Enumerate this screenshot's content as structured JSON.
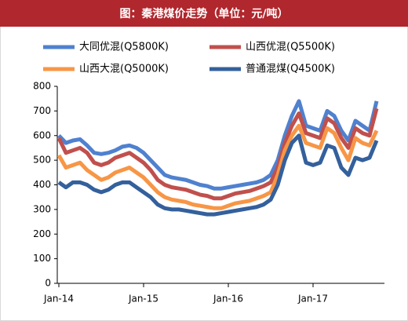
{
  "chart_data": {
    "type": "line",
    "title": "图：秦港煤价走势（单位：元/吨）",
    "categories": [
      "Jan-14",
      null,
      null,
      null,
      null,
      null,
      null,
      null,
      null,
      null,
      null,
      null,
      "Jan-15",
      null,
      null,
      null,
      null,
      null,
      null,
      null,
      null,
      null,
      null,
      null,
      "Jan-16",
      null,
      null,
      null,
      null,
      null,
      null,
      null,
      null,
      null,
      null,
      null,
      "Jan-17",
      null,
      null,
      null,
      null,
      null,
      null,
      null,
      null,
      null
    ],
    "series": [
      {
        "name": "大同优混(Q5800K)",
        "color": "#4f81cf",
        "values": [
          600,
          570,
          580,
          585,
          560,
          530,
          525,
          530,
          540,
          555,
          560,
          550,
          530,
          500,
          470,
          440,
          430,
          425,
          420,
          410,
          400,
          395,
          385,
          385,
          390,
          395,
          400,
          405,
          410,
          420,
          440,
          500,
          600,
          680,
          740,
          640,
          630,
          620,
          700,
          680,
          620,
          580,
          660,
          640,
          620,
          740
        ]
      },
      {
        "name": "山西优混(Q5500K)",
        "color": "#c0504d",
        "values": [
          590,
          530,
          540,
          550,
          530,
          490,
          480,
          490,
          510,
          520,
          530,
          510,
          490,
          460,
          420,
          400,
          390,
          385,
          380,
          370,
          360,
          355,
          345,
          345,
          355,
          365,
          370,
          375,
          385,
          395,
          410,
          470,
          570,
          640,
          690,
          610,
          600,
          590,
          670,
          650,
          590,
          550,
          630,
          610,
          600,
          710
        ]
      },
      {
        "name": "山西大混(Q5000K)",
        "color": "#f79646",
        "values": [
          520,
          470,
          480,
          490,
          460,
          440,
          420,
          430,
          450,
          460,
          470,
          450,
          430,
          400,
          370,
          350,
          340,
          335,
          330,
          320,
          315,
          310,
          305,
          305,
          315,
          325,
          330,
          335,
          345,
          355,
          370,
          440,
          540,
          600,
          640,
          570,
          560,
          550,
          630,
          610,
          550,
          500,
          590,
          570,
          560,
          620
        ]
      },
      {
        "name": "普通混煤(Q4500K)",
        "color": "#34609c",
        "values": [
          410,
          390,
          410,
          410,
          400,
          380,
          370,
          380,
          400,
          410,
          410,
          390,
          370,
          350,
          320,
          305,
          300,
          300,
          295,
          290,
          285,
          280,
          280,
          285,
          290,
          295,
          300,
          305,
          310,
          320,
          340,
          400,
          500,
          570,
          600,
          490,
          480,
          490,
          560,
          550,
          470,
          440,
          510,
          500,
          510,
          580
        ]
      }
    ],
    "ylim": [
      0,
      800
    ],
    "yticks": [
      0,
      100,
      200,
      300,
      400,
      500,
      600,
      700,
      800
    ],
    "grid": false,
    "legend": "top"
  }
}
